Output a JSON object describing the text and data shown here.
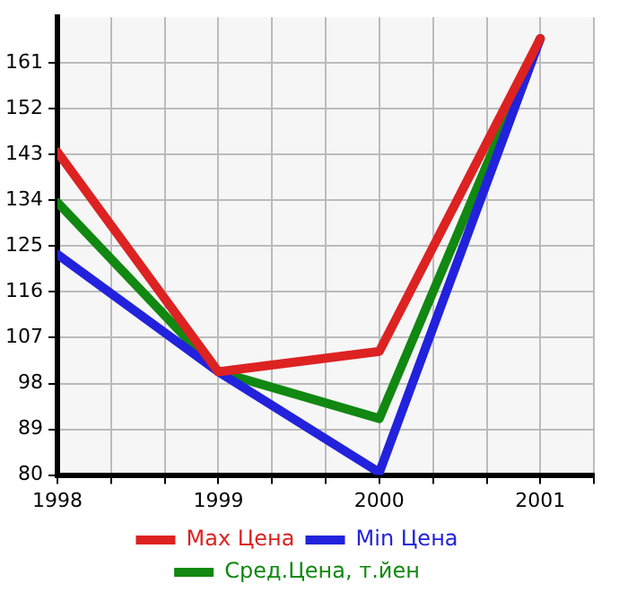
{
  "chart_data": {
    "type": "line",
    "x": [
      1998,
      1999,
      2000,
      2001
    ],
    "series": [
      {
        "name": "Max Цена",
        "color": "#dd2222",
        "values": [
          143.5,
          100.3,
          104.3,
          165.8
        ]
      },
      {
        "name": "Min Цена",
        "color": "#2222dd",
        "values": [
          123.4,
          100.3,
          80.5,
          165.8
        ]
      },
      {
        "name": "Сред.Цена, т.йен",
        "color": "#118811",
        "values": [
          133.6,
          100.3,
          91.1,
          165.8
        ]
      }
    ],
    "xlim": [
      1998,
      2001.333
    ],
    "xticks": [
      1998,
      {
        "value": 1998.333,
        "label": null
      },
      {
        "value": 1998.667,
        "label": null
      },
      1999,
      {
        "value": 1999.333,
        "label": null
      },
      {
        "value": 1999.667,
        "label": null
      },
      2000,
      {
        "value": 2000.333,
        "label": null
      },
      {
        "value": 2000.667,
        "label": null
      },
      2001,
      {
        "value": 2001.333,
        "label": null
      }
    ],
    "ylim": [
      80,
      170
    ],
    "yticks": [
      80,
      89,
      98,
      107,
      116,
      125,
      134,
      143,
      152,
      161
    ],
    "grid": true,
    "legend": "bottom",
    "marker": "none",
    "line_style": "solid"
  }
}
